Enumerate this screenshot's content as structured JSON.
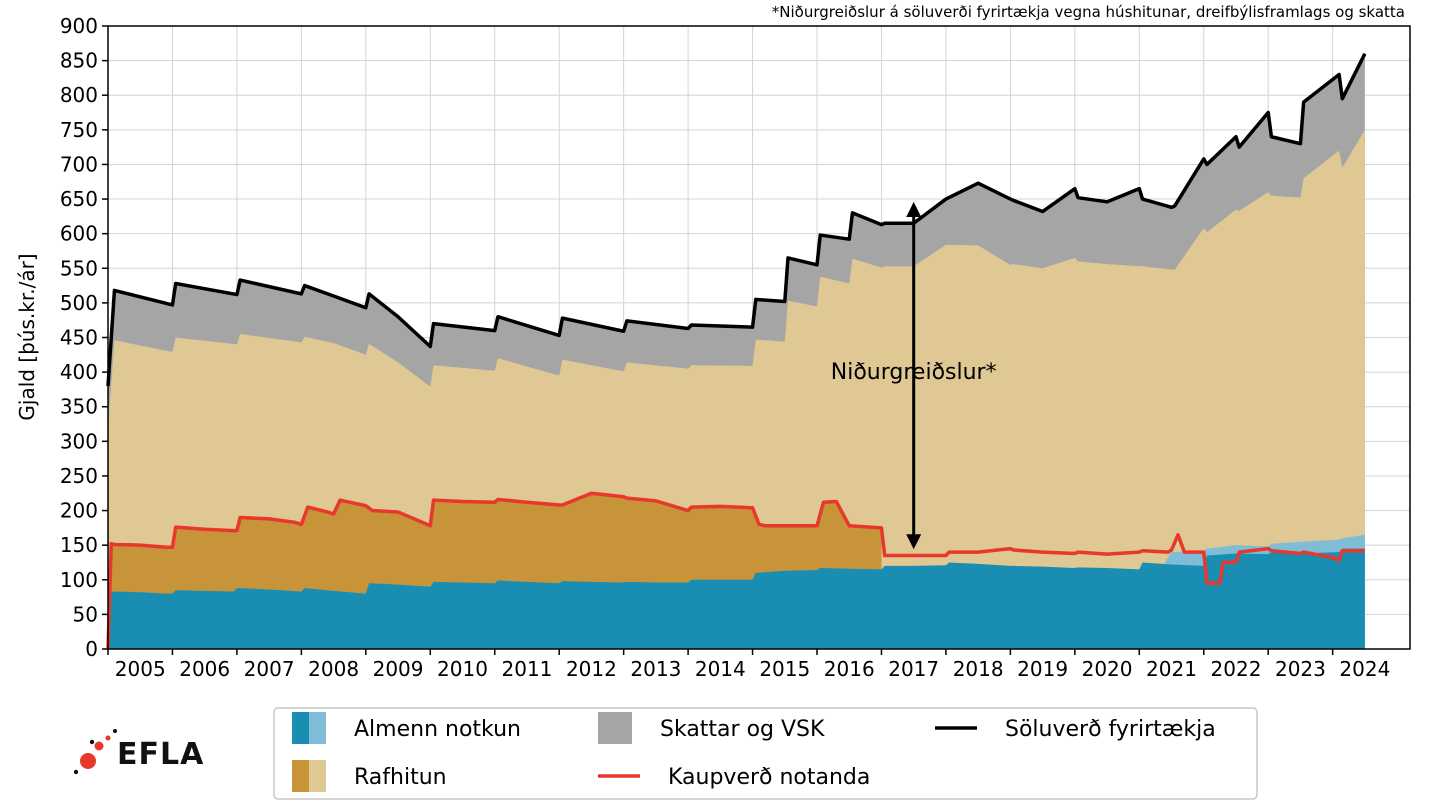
{
  "chart_data": {
    "type": "area",
    "title": "",
    "note": "*Niðurgreiðslur á söluverði fyrirtækja vegna húshitunar, dreifbýlisframlags og skatta",
    "ylabel": "Gjald [þús.kr./ár]",
    "xlabel": "",
    "ylim": [
      0,
      900
    ],
    "xlim": [
      2004.5,
      2024.7
    ],
    "yticks": [
      0,
      50,
      100,
      150,
      200,
      250,
      300,
      350,
      400,
      450,
      500,
      550,
      600,
      650,
      700,
      750,
      800,
      850,
      900
    ],
    "xtick_labels": [
      "2005",
      "2006",
      "2007",
      "2008",
      "2009",
      "2010",
      "2011",
      "2012",
      "2013",
      "2014",
      "2015",
      "2016",
      "2017",
      "2018",
      "2019",
      "2020",
      "2021",
      "2022",
      "2023",
      "2024"
    ],
    "grid": true,
    "annotation": {
      "text": "Niðurgreiðslur*",
      "x": 2017.0,
      "y_top": 635,
      "y_bottom": 155,
      "y_text": 390
    },
    "series": [
      {
        "name": "Almenn notkun",
        "type": "area",
        "color": "#1a8db3",
        "x": [
          2004.5,
          2004.55,
          2004.6,
          2005.0,
          2005.4,
          2005.5,
          2005.55,
          2006.0,
          2006.45,
          2006.5,
          2006.55,
          2007.0,
          2007.5,
          2007.55,
          2008.0,
          2008.5,
          2008.55,
          2009.0,
          2009.5,
          2009.55,
          2010.0,
          2010.5,
          2010.55,
          2011.0,
          2011.5,
          2011.55,
          2012.0,
          2012.5,
          2012.55,
          2013.0,
          2013.5,
          2013.55,
          2014.0,
          2014.5,
          2014.55,
          2015.0,
          2015.5,
          2015.55,
          2016.0,
          2016.5,
          2016.55,
          2017.0,
          2017.5,
          2017.55,
          2018.0,
          2018.5,
          2018.55,
          2019.0,
          2019.5,
          2019.55,
          2020.0,
          2020.5,
          2020.55,
          2021.0,
          2021.5,
          2021.55,
          2022.0,
          2022.5,
          2022.55,
          2023.0,
          2023.6,
          2023.65,
          2024.0
        ],
        "values": [
          0,
          82,
          83,
          82,
          80,
          80,
          85,
          84,
          83,
          88,
          88,
          86,
          83,
          88,
          84,
          80,
          95,
          93,
          90,
          97,
          96,
          95,
          99,
          97,
          95,
          98,
          97,
          96,
          97,
          96,
          96,
          100,
          100,
          100,
          110,
          113,
          114,
          117,
          116,
          115,
          120,
          120,
          121,
          125,
          123,
          120,
          120,
          119,
          117,
          118,
          117,
          115,
          125,
          122,
          120,
          135,
          138,
          137,
          140,
          138,
          140,
          145,
          145
        ]
      },
      {
        "name": "Almenn notkun",
        "type": "area",
        "color": "#7fbdd6",
        "note": "light segment 2021–2024",
        "x": [
          2020.9,
          2021.0,
          2021.5,
          2021.55,
          2022.0,
          2022.5,
          2022.55,
          2023.0,
          2023.6,
          2023.65,
          2024.0
        ],
        "values": [
          125,
          140,
          142,
          145,
          150,
          148,
          152,
          155,
          158,
          160,
          165
        ]
      },
      {
        "name": "Rafhitun",
        "type": "area",
        "color": "#c8943a",
        "x": [
          2004.5,
          2004.55,
          2004.6,
          2005.0,
          2005.4,
          2005.5,
          2005.55,
          2006.0,
          2006.45,
          2006.5,
          2006.55,
          2007.0,
          2007.4,
          2007.5,
          2007.6,
          2007.9,
          2008.0,
          2008.1,
          2008.5,
          2008.6,
          2009.0,
          2009.5,
          2009.55,
          2010.0,
          2010.5,
          2010.55,
          2011.0,
          2011.5,
          2011.55,
          2012.0,
          2012.5,
          2012.55,
          2013.0,
          2013.5,
          2013.55,
          2014.0,
          2014.5,
          2014.6,
          2014.7,
          2014.8,
          2015.0,
          2015.5,
          2015.6,
          2015.8,
          2016.0,
          2016.5
        ],
        "values": [
          0,
          152,
          151,
          150,
          147,
          147,
          176,
          173,
          171,
          171,
          190,
          188,
          183,
          180,
          205,
          198,
          195,
          215,
          207,
          200,
          198,
          178,
          215,
          213,
          212,
          216,
          212,
          208,
          208,
          225,
          220,
          218,
          214,
          200,
          205,
          206,
          204,
          180,
          178,
          178,
          178,
          178,
          212,
          213,
          178,
          175
        ]
      },
      {
        "name": "Skattar og VSK",
        "type": "area",
        "color": "#a5a5a5",
        "x": [
          2004.5,
          2004.6,
          2005.5,
          2005.55,
          2006.5,
          2006.55,
          2007.5,
          2007.55,
          2008.0,
          2008.5,
          2008.55,
          2009.0,
          2009.5,
          2009.55,
          2010.5,
          2010.55,
          2011.5,
          2011.55,
          2012.5,
          2012.55,
          2013.5,
          2013.55,
          2014.5,
          2014.55,
          2015.0,
          2015.05,
          2015.5,
          2015.55,
          2016.0,
          2016.05,
          2016.5,
          2016.55,
          2017.0,
          2017.5,
          2018.0,
          2018.5,
          2018.55,
          2019.0,
          2019.5,
          2019.55,
          2020.0,
          2020.5,
          2020.55,
          2021.0,
          2021.05,
          2021.5,
          2021.55,
          2022.0,
          2022.05,
          2022.5,
          2022.55,
          2023.0,
          2023.05,
          2023.6,
          2023.65,
          2024.0
        ],
        "values": [
          380,
          518,
          497,
          528,
          512,
          533,
          513,
          525,
          510,
          493,
          513,
          480,
          437,
          470,
          460,
          480,
          453,
          478,
          459,
          474,
          463,
          468,
          465,
          505,
          502,
          565,
          555,
          598,
          592,
          630,
          613,
          615,
          615,
          650,
          673,
          650,
          648,
          632,
          665,
          652,
          646,
          665,
          650,
          638,
          640,
          708,
          700,
          740,
          725,
          775,
          740,
          730,
          790,
          830,
          795,
          860
        ]
      },
      {
        "name": "Söluverð fyrirtækja",
        "type": "line",
        "color": "#000000",
        "x": [
          2004.5,
          2004.6,
          2005.5,
          2005.55,
          2006.5,
          2006.55,
          2007.5,
          2007.55,
          2008.0,
          2008.5,
          2008.55,
          2009.0,
          2009.5,
          2009.55,
          2010.5,
          2010.55,
          2011.5,
          2011.55,
          2012.5,
          2012.55,
          2013.5,
          2013.55,
          2014.5,
          2014.55,
          2015.0,
          2015.05,
          2015.5,
          2015.55,
          2016.0,
          2016.05,
          2016.5,
          2016.55,
          2017.0,
          2017.5,
          2018.0,
          2018.5,
          2018.55,
          2019.0,
          2019.5,
          2019.55,
          2020.0,
          2020.5,
          2020.55,
          2021.0,
          2021.05,
          2021.5,
          2021.55,
          2022.0,
          2022.05,
          2022.5,
          2022.55,
          2023.0,
          2023.05,
          2023.6,
          2023.65,
          2024.0
        ],
        "values": [
          380,
          518,
          497,
          528,
          512,
          533,
          513,
          525,
          510,
          493,
          513,
          480,
          437,
          470,
          460,
          480,
          453,
          478,
          459,
          474,
          463,
          468,
          465,
          505,
          502,
          565,
          555,
          598,
          592,
          630,
          613,
          615,
          615,
          650,
          673,
          650,
          648,
          632,
          665,
          652,
          646,
          665,
          650,
          638,
          640,
          708,
          700,
          740,
          725,
          775,
          740,
          730,
          790,
          830,
          795,
          860
        ]
      },
      {
        "name": "Kaupverð notanda",
        "type": "line",
        "color": "#e8372b",
        "x": [
          2004.5,
          2004.55,
          2004.6,
          2005.0,
          2005.4,
          2005.5,
          2005.55,
          2006.0,
          2006.45,
          2006.5,
          2006.55,
          2007.0,
          2007.4,
          2007.5,
          2007.6,
          2007.9,
          2008.0,
          2008.1,
          2008.5,
          2008.6,
          2009.0,
          2009.5,
          2009.55,
          2010.0,
          2010.5,
          2010.55,
          2011.0,
          2011.5,
          2011.55,
          2012.0,
          2012.5,
          2012.55,
          2013.0,
          2013.5,
          2013.55,
          2014.0,
          2014.5,
          2014.6,
          2014.7,
          2014.8,
          2015.0,
          2015.5,
          2015.6,
          2015.8,
          2016.0,
          2016.5,
          2016.55,
          2017.0,
          2017.5,
          2017.55,
          2018.0,
          2018.5,
          2018.55,
          2019.0,
          2019.5,
          2019.55,
          2020.0,
          2020.5,
          2020.55,
          2020.95,
          2021.0,
          2021.1,
          2021.2,
          2021.5,
          2021.55,
          2021.75,
          2021.8,
          2022.0,
          2022.05,
          2022.5,
          2022.55,
          2023.0,
          2023.05,
          2023.5,
          2023.6,
          2023.65,
          2024.0
        ],
        "values": [
          0,
          152,
          151,
          150,
          147,
          147,
          176,
          173,
          171,
          171,
          190,
          188,
          183,
          180,
          205,
          198,
          195,
          215,
          207,
          200,
          198,
          178,
          215,
          213,
          212,
          216,
          212,
          208,
          208,
          225,
          220,
          218,
          214,
          200,
          205,
          206,
          204,
          180,
          178,
          178,
          178,
          178,
          212,
          213,
          178,
          175,
          135,
          135,
          135,
          140,
          140,
          145,
          143,
          140,
          138,
          140,
          137,
          140,
          142,
          140,
          143,
          165,
          140,
          140,
          95,
          95,
          125,
          125,
          140,
          145,
          142,
          138,
          140,
          132,
          128,
          142,
          142
        ]
      }
    ]
  },
  "legend": {
    "items": [
      {
        "label": "Almenn notkun",
        "kind": "patch2",
        "colors": [
          "#1a8db3",
          "#7fbdd6"
        ]
      },
      {
        "label": "Skattar og VSK",
        "kind": "patch",
        "colors": [
          "#a5a5a5"
        ]
      },
      {
        "label": "Söluverð fyrirtækja",
        "kind": "line",
        "colors": [
          "#000000"
        ]
      },
      {
        "label": "Rafhitun",
        "kind": "patch2",
        "colors": [
          "#c8943a",
          "#dfc893"
        ]
      },
      {
        "label": "Kaupverð notanda",
        "kind": "line",
        "colors": [
          "#e8372b"
        ]
      }
    ]
  },
  "logo": {
    "text": "EFLA"
  }
}
